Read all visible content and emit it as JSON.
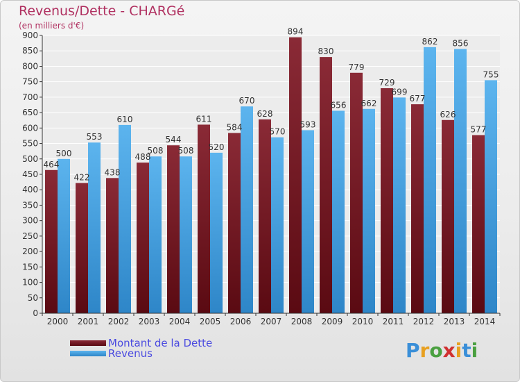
{
  "title": "Revenus/Dette - CHARGé",
  "subtitle": "(en milliers d'€)",
  "legend": [
    {
      "label": "Montant de la Dette"
    },
    {
      "label": "Revenus"
    }
  ],
  "logo": {
    "text": "Proxiti"
  },
  "colors": {
    "dette": "#7a1e2a",
    "dette_light": "#9a3a44",
    "revenus": "#4aa8e8",
    "revenus_light": "#6bbcf0",
    "title": "#b03060",
    "legend_text": "#4a4ae0",
    "grid": "#ffffff",
    "axis": "#333333"
  },
  "chart_data": {
    "type": "bar",
    "title": "Revenus/Dette - CHARGé",
    "subtitle": "(en milliers d'€)",
    "categories": [
      "2000",
      "2001",
      "2002",
      "2003",
      "2004",
      "2005",
      "2006",
      "2007",
      "2008",
      "2009",
      "2010",
      "2011",
      "2012",
      "2013",
      "2014"
    ],
    "series": [
      {
        "name": "Montant de la Dette",
        "values": [
          464,
          422,
          438,
          488,
          544,
          611,
          584,
          628,
          894,
          830,
          779,
          729,
          677,
          626,
          577
        ]
      },
      {
        "name": "Revenus",
        "values": [
          500,
          553,
          610,
          508,
          508,
          520,
          670,
          570,
          593,
          656,
          662,
          699,
          862,
          856,
          755
        ]
      }
    ],
    "ylim": [
      0,
      900
    ],
    "yticks": [
      0,
      50,
      100,
      150,
      200,
      250,
      300,
      350,
      400,
      450,
      500,
      550,
      600,
      650,
      700,
      750,
      800,
      850,
      900
    ],
    "grid": true,
    "legend_position": "bottom-left"
  }
}
